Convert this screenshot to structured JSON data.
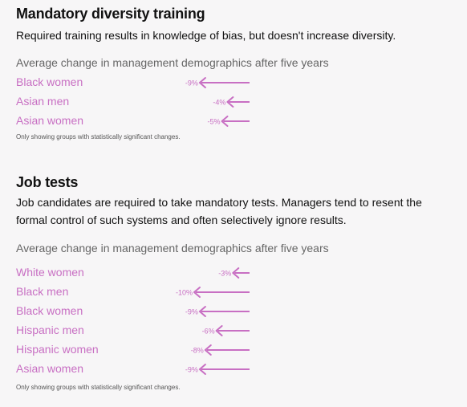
{
  "accent_color": "#c86fc3",
  "sections": [
    {
      "title": "Mandatory diversity training",
      "description": "Required training results in knowledge of bias, but doesn't increase diversity.",
      "subtitle": "Average change in management demographics after five years",
      "footnote": "Only showing groups with statistically significant changes."
    },
    {
      "title": "Job tests",
      "description": "Job candidates are required to take mandatory tests. Managers tend to resent the formal control of such systems and often selectively ignore results.",
      "subtitle": "Average change in management demographics after five years",
      "footnote": "Only showing groups with statistically significant changes."
    }
  ],
  "chart_data": [
    {
      "type": "bar",
      "title": "Average change in management demographics after five years",
      "categories": [
        "Black women",
        "Asian men",
        "Asian women"
      ],
      "values": [
        -9,
        -4,
        -5
      ],
      "value_labels": [
        "-9%",
        "-4%",
        "-5%"
      ],
      "unit": "%",
      "xlim": [
        -10,
        0
      ]
    },
    {
      "type": "bar",
      "title": "Average change in management demographics after five years",
      "categories": [
        "White women",
        "Black men",
        "Black women",
        "Hispanic men",
        "Hispanic women",
        "Asian women"
      ],
      "values": [
        -3,
        -10,
        -9,
        -6,
        -8,
        -9
      ],
      "value_labels": [
        "-3%",
        "-10%",
        "-9%",
        "-6%",
        "-8%",
        "-9%"
      ],
      "unit": "%",
      "xlim": [
        -10,
        0
      ]
    }
  ]
}
